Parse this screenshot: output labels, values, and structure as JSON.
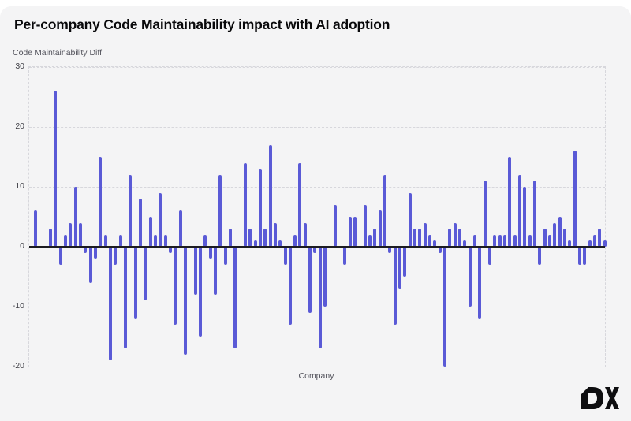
{
  "title": "Per-company Code Maintainability impact with AI adoption",
  "y_axis_title": "Code Maintainability Diff",
  "x_axis_label": "Company",
  "logo_text": "DX",
  "colors": {
    "background": "#f4f4f5",
    "bar": "#5a5ad6",
    "zero_line": "#1c1c20",
    "grid": "#d7d7dc",
    "title_text": "#09090b",
    "axis_text": "#52525b",
    "tick_text": "#3f3f46",
    "logo": "#0e0e10"
  },
  "chart_data": {
    "type": "bar",
    "title": "Per-company Code Maintainability impact with AI adoption",
    "xlabel": "Company",
    "ylabel": "Code Maintainability Diff",
    "ylim": [
      -20,
      30
    ],
    "yticks": [
      30,
      20,
      10,
      0,
      -10,
      -20
    ],
    "grid": "horizontal-dashed",
    "legend": "none",
    "x_tick_labels": "none (one thin bar per company)",
    "values": [
      6,
      0,
      0,
      3,
      26,
      -3,
      2,
      4,
      10,
      4,
      -1,
      -6,
      -2,
      15,
      2,
      -19,
      -3,
      2,
      -17,
      12,
      -12,
      8,
      -9,
      5,
      2,
      9,
      2,
      -1,
      -13,
      6,
      -18,
      0,
      -8,
      -15,
      2,
      -2,
      -8,
      12,
      -3,
      3,
      -17,
      0,
      14,
      3,
      1,
      13,
      3,
      17,
      4,
      1,
      -3,
      -13,
      2,
      14,
      4,
      -11,
      -1,
      -17,
      -10,
      0,
      7,
      0,
      -3,
      5,
      5,
      0,
      7,
      2,
      3,
      6,
      12,
      -1,
      -13,
      -7,
      -5,
      9,
      3,
      3,
      4,
      2,
      1,
      -1,
      -20,
      3,
      4,
      3,
      1,
      -10,
      2,
      -12,
      11,
      -3,
      2,
      2,
      2,
      15,
      2,
      12,
      10,
      2,
      11,
      -3,
      3,
      2,
      4,
      5,
      3,
      1,
      16,
      -3,
      -3,
      1,
      2,
      3,
      1
    ]
  }
}
